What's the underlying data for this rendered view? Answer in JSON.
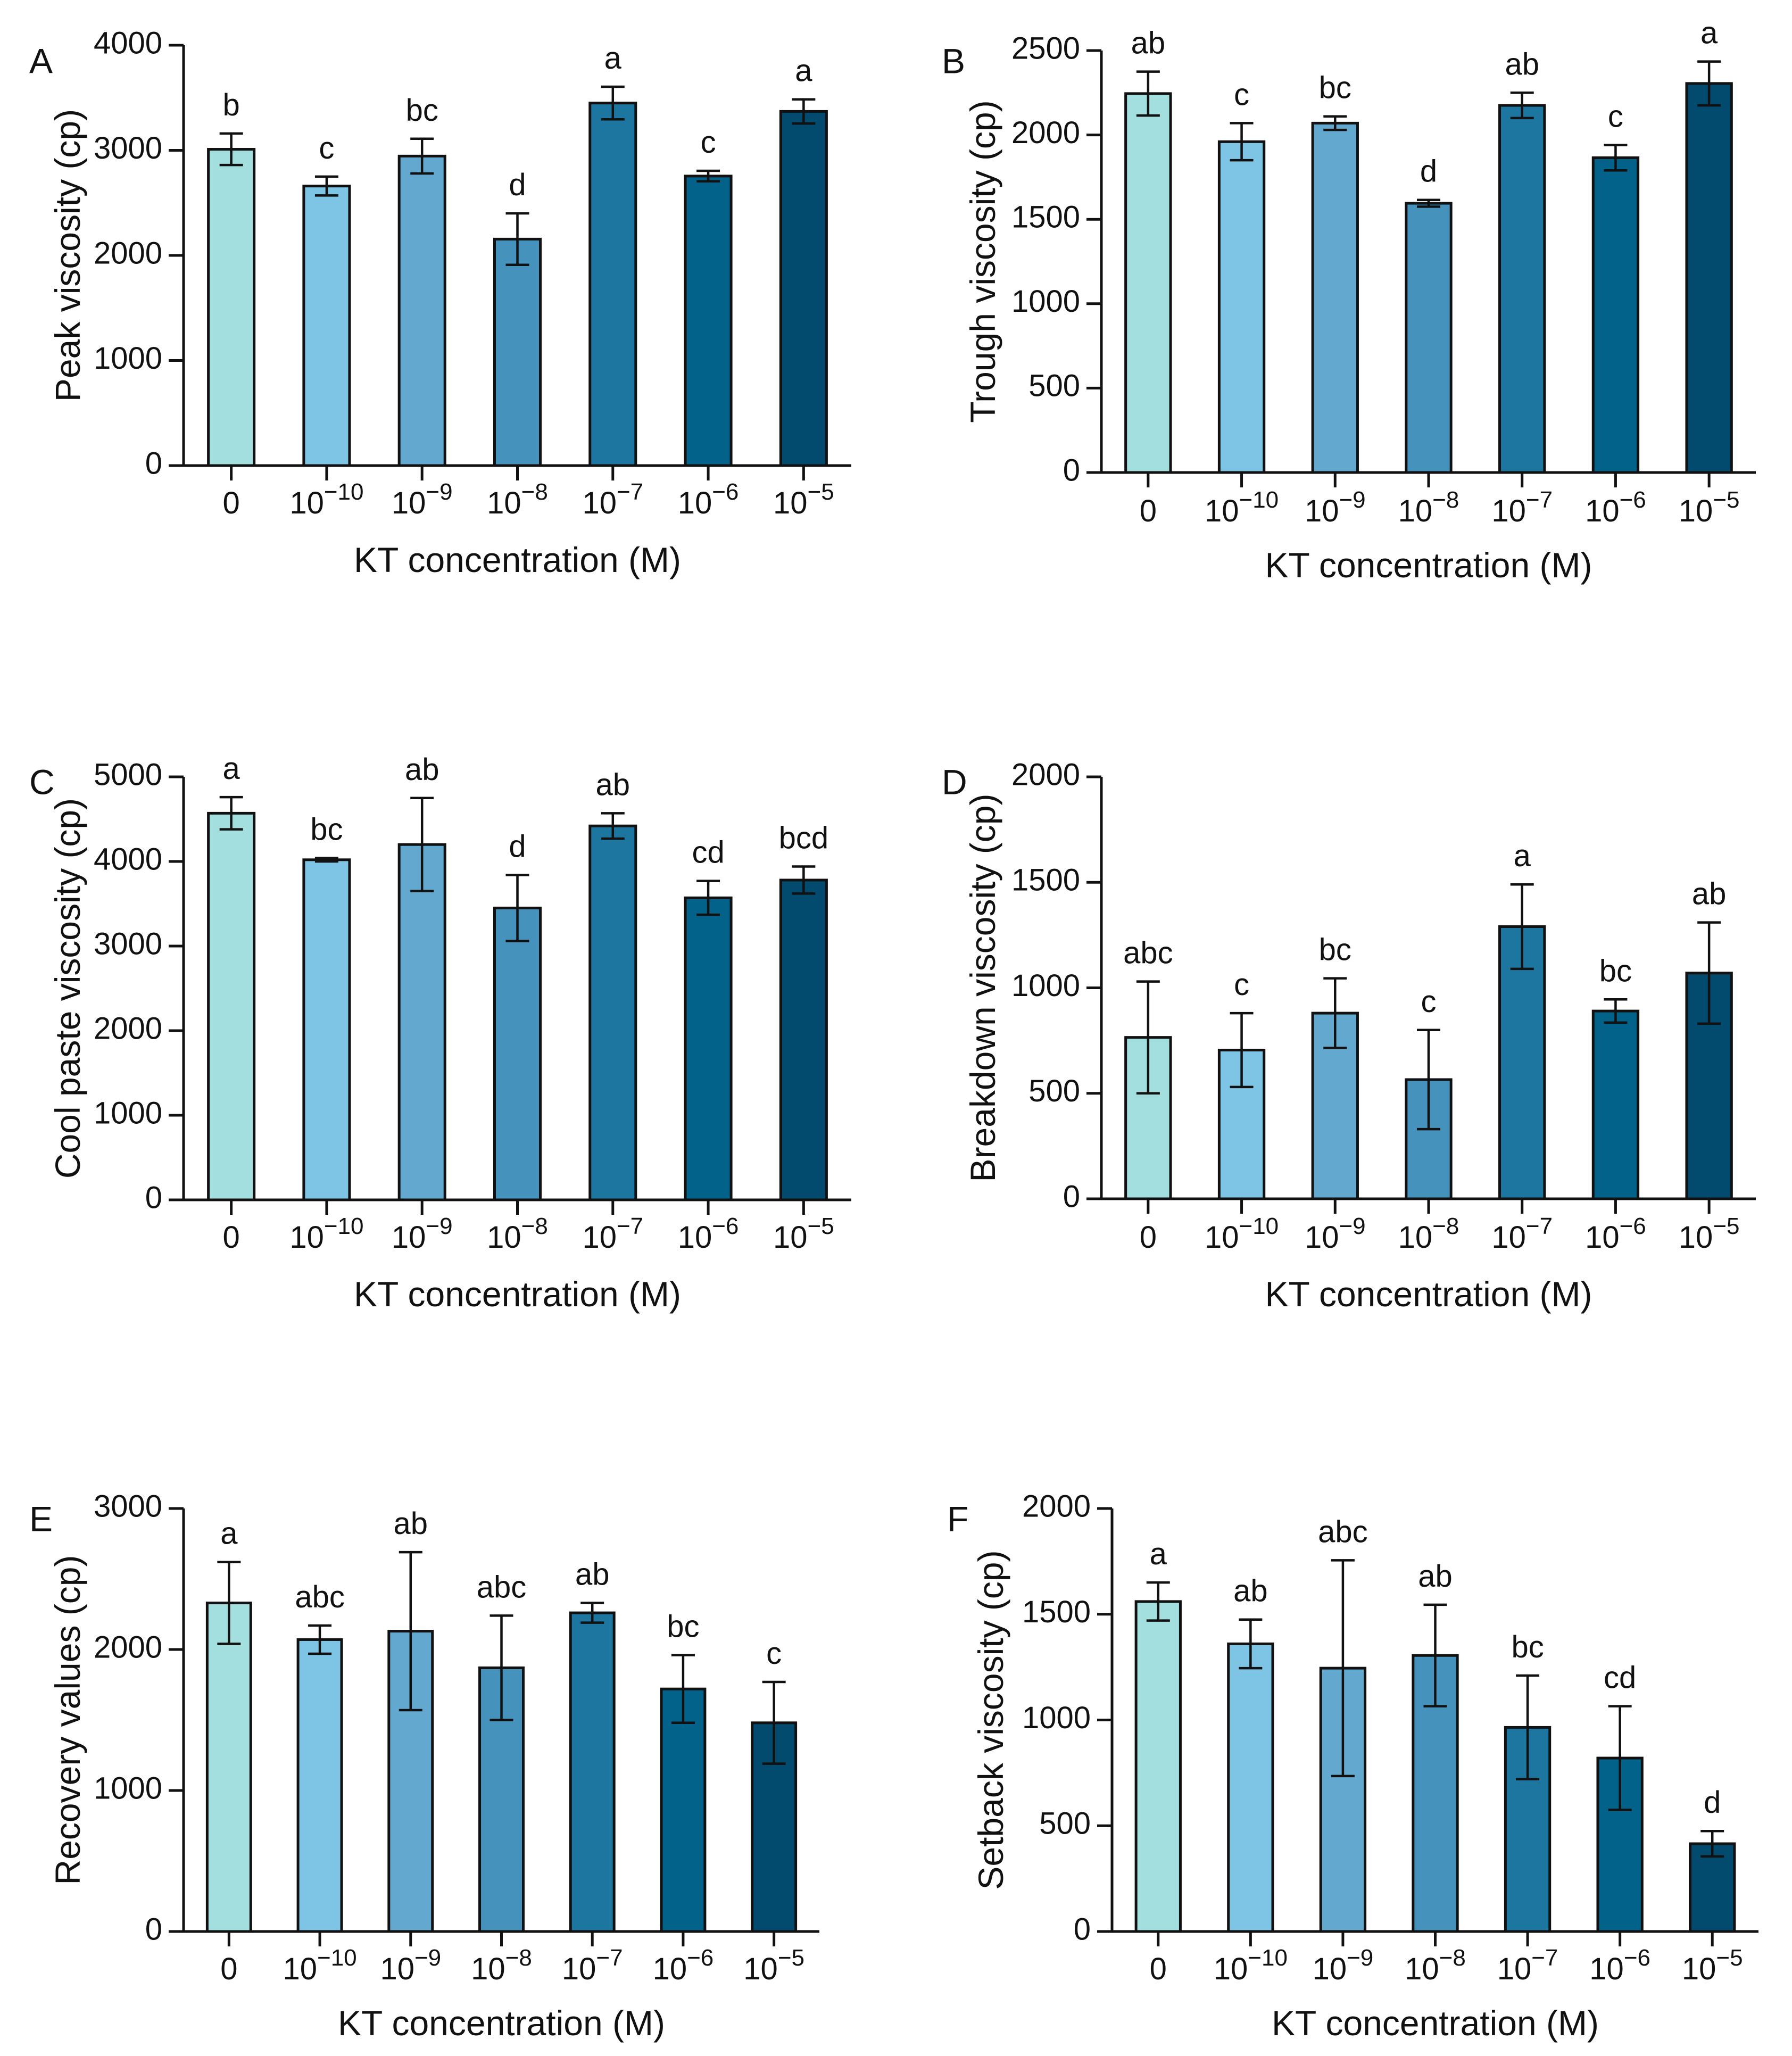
{
  "figure": {
    "xlabel": "KT concentration (M)"
  },
  "chart_data": [
    {
      "panel": "A",
      "type": "bar",
      "ylabel": "Peak viscosity (cp)",
      "xlabel": "KT concentration (M)",
      "categories": [
        {
          "base": "0",
          "exp": ""
        },
        {
          "base": "10",
          "exp": "−10"
        },
        {
          "base": "10",
          "exp": "−9"
        },
        {
          "base": "10",
          "exp": "−8"
        },
        {
          "base": "10",
          "exp": "−7"
        },
        {
          "base": "10",
          "exp": "−6"
        },
        {
          "base": "10",
          "exp": "−5"
        }
      ],
      "ylim": [
        0,
        4000
      ],
      "yticks": [
        0,
        1000,
        2000,
        3000,
        4000
      ],
      "values": [
        3010,
        2660,
        2945,
        2155,
        3450,
        2755,
        3370
      ],
      "errors": [
        150,
        90,
        165,
        245,
        155,
        50,
        115
      ],
      "letters": [
        "b",
        "c",
        "bc",
        "d",
        "a",
        "c",
        "a"
      ],
      "colors": [
        "#a3dfdf",
        "#7ec4e4",
        "#62a8cf",
        "#4593bd",
        "#1d76a0",
        "#03628a",
        "#024a6e"
      ]
    },
    {
      "panel": "B",
      "type": "bar",
      "ylabel": "Trough viscosity (cp)",
      "xlabel": "KT concentration (M)",
      "categories": [
        {
          "base": "0",
          "exp": ""
        },
        {
          "base": "10",
          "exp": "−10"
        },
        {
          "base": "10",
          "exp": "−9"
        },
        {
          "base": "10",
          "exp": "−8"
        },
        {
          "base": "10",
          "exp": "−7"
        },
        {
          "base": "10",
          "exp": "−6"
        },
        {
          "base": "10",
          "exp": "−5"
        }
      ],
      "ylim": [
        0,
        2500
      ],
      "yticks": [
        0,
        500,
        1000,
        1500,
        2000,
        2500
      ],
      "values": [
        2245,
        1960,
        2070,
        1595,
        2175,
        1865,
        2305
      ],
      "errors": [
        130,
        110,
        40,
        20,
        75,
        75,
        130
      ],
      "letters": [
        "ab",
        "c",
        "bc",
        "d",
        "ab",
        "c",
        "a"
      ],
      "colors": [
        "#a3dfdf",
        "#7ec4e4",
        "#62a8cf",
        "#4593bd",
        "#1d76a0",
        "#03628a",
        "#024a6e"
      ]
    },
    {
      "panel": "C",
      "type": "bar",
      "ylabel": "Cool paste viscosity (cp)",
      "xlabel": "KT concentration (M)",
      "categories": [
        {
          "base": "0",
          "exp": ""
        },
        {
          "base": "10",
          "exp": "−10"
        },
        {
          "base": "10",
          "exp": "−9"
        },
        {
          "base": "10",
          "exp": "−8"
        },
        {
          "base": "10",
          "exp": "−7"
        },
        {
          "base": "10",
          "exp": "−6"
        },
        {
          "base": "10",
          "exp": "−5"
        }
      ],
      "ylim": [
        0,
        5000
      ],
      "yticks": [
        0,
        1000,
        2000,
        3000,
        4000,
        5000
      ],
      "values": [
        4570,
        4020,
        4200,
        3450,
        4420,
        3570,
        3780
      ],
      "errors": [
        190,
        20,
        550,
        390,
        150,
        200,
        160
      ],
      "letters": [
        "a",
        "bc",
        "ab",
        "d",
        "ab",
        "cd",
        "bcd"
      ],
      "colors": [
        "#a3dfdf",
        "#7ec4e4",
        "#62a8cf",
        "#4593bd",
        "#1d76a0",
        "#03628a",
        "#024a6e"
      ]
    },
    {
      "panel": "D",
      "type": "bar",
      "ylabel": "Breakdown viscosity (cp)",
      "xlabel": "KT concentration (M)",
      "categories": [
        {
          "base": "0",
          "exp": ""
        },
        {
          "base": "10",
          "exp": "−10"
        },
        {
          "base": "10",
          "exp": "−9"
        },
        {
          "base": "10",
          "exp": "−8"
        },
        {
          "base": "10",
          "exp": "−7"
        },
        {
          "base": "10",
          "exp": "−6"
        },
        {
          "base": "10",
          "exp": "−5"
        }
      ],
      "ylim": [
        0,
        2000
      ],
      "yticks": [
        0,
        500,
        1000,
        1500,
        2000
      ],
      "values": [
        765,
        705,
        880,
        565,
        1290,
        890,
        1070
      ],
      "errors": [
        265,
        175,
        165,
        235,
        200,
        55,
        240
      ],
      "letters": [
        "abc",
        "c",
        "bc",
        "c",
        "a",
        "bc",
        "ab"
      ],
      "colors": [
        "#a3dfdf",
        "#7ec4e4",
        "#62a8cf",
        "#4593bd",
        "#1d76a0",
        "#03628a",
        "#024a6e"
      ]
    },
    {
      "panel": "E",
      "type": "bar",
      "ylabel": "Recovery values (cp)",
      "xlabel": "KT concentration (M)",
      "categories": [
        {
          "base": "0",
          "exp": ""
        },
        {
          "base": "10",
          "exp": "−10"
        },
        {
          "base": "10",
          "exp": "−9"
        },
        {
          "base": "10",
          "exp": "−8"
        },
        {
          "base": "10",
          "exp": "−7"
        },
        {
          "base": "10",
          "exp": "−6"
        },
        {
          "base": "10",
          "exp": "−5"
        }
      ],
      "ylim": [
        0,
        3000
      ],
      "yticks": [
        0,
        1000,
        2000,
        3000
      ],
      "values": [
        2330,
        2070,
        2130,
        1870,
        2260,
        1720,
        1480
      ],
      "errors": [
        290,
        100,
        560,
        370,
        70,
        240,
        290
      ],
      "letters": [
        "a",
        "abc",
        "ab",
        "abc",
        "ab",
        "bc",
        "c"
      ],
      "colors": [
        "#a3dfdf",
        "#7ec4e4",
        "#62a8cf",
        "#4593bd",
        "#1d76a0",
        "#03628a",
        "#024a6e"
      ]
    },
    {
      "panel": "F",
      "type": "bar",
      "ylabel": "Setback viscosity (cp)",
      "xlabel": "KT concentration (M)",
      "categories": [
        {
          "base": "0",
          "exp": ""
        },
        {
          "base": "10",
          "exp": "−10"
        },
        {
          "base": "10",
          "exp": "−9"
        },
        {
          "base": "10",
          "exp": "−8"
        },
        {
          "base": "10",
          "exp": "−7"
        },
        {
          "base": "10",
          "exp": "−6"
        },
        {
          "base": "10",
          "exp": "−5"
        }
      ],
      "ylim": [
        0,
        2000
      ],
      "yticks": [
        0,
        500,
        1000,
        1500,
        2000
      ],
      "values": [
        1560,
        1360,
        1245,
        1305,
        965,
        820,
        415
      ],
      "errors": [
        90,
        115,
        510,
        240,
        245,
        245,
        60
      ],
      "letters": [
        "a",
        "ab",
        "abc",
        "ab",
        "bc",
        "cd",
        "d"
      ],
      "colors": [
        "#a3dfdf",
        "#7ec4e4",
        "#62a8cf",
        "#4593bd",
        "#1d76a0",
        "#03628a",
        "#024a6e"
      ]
    }
  ]
}
